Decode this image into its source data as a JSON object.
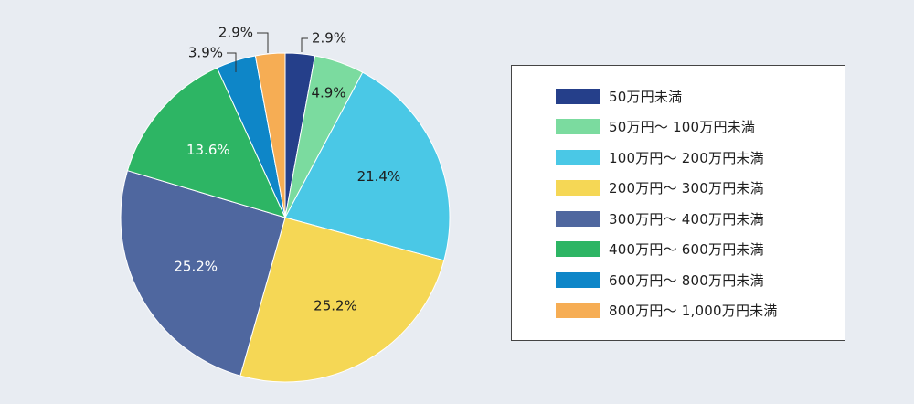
{
  "chart_data": {
    "type": "pie",
    "start_angle_deg": 0,
    "direction": "clockwise",
    "slices": [
      {
        "label": "50万円未満",
        "value": 2.9,
        "value_label": "2.9%",
        "color": "#253f8a"
      },
      {
        "label": "50万円～ 100万円未満",
        "value": 4.9,
        "value_label": "4.9%",
        "color": "#7bdb9f"
      },
      {
        "label": "100万円～ 200万円未満",
        "value": 21.4,
        "value_label": "21.4%",
        "color": "#4ac8e6"
      },
      {
        "label": "200万円～ 300万円未満",
        "value": 25.2,
        "value_label": "25.2%",
        "color": "#f5d755"
      },
      {
        "label": "300万円～ 400万円未満",
        "value": 25.2,
        "value_label": "25.2%",
        "color": "#4f679f"
      },
      {
        "label": "400万円～ 600万円未満",
        "value": 13.6,
        "value_label": "13.6%",
        "color": "#2db564"
      },
      {
        "label": "600万円～ 800万円未満",
        "value": 3.9,
        "value_label": "3.9%",
        "color": "#0e86c8"
      },
      {
        "label": "800万円～ 1,000万円未満",
        "value": 2.9,
        "value_label": "2.9%",
        "color": "#f6ad54"
      }
    ],
    "legend_position": "right"
  }
}
